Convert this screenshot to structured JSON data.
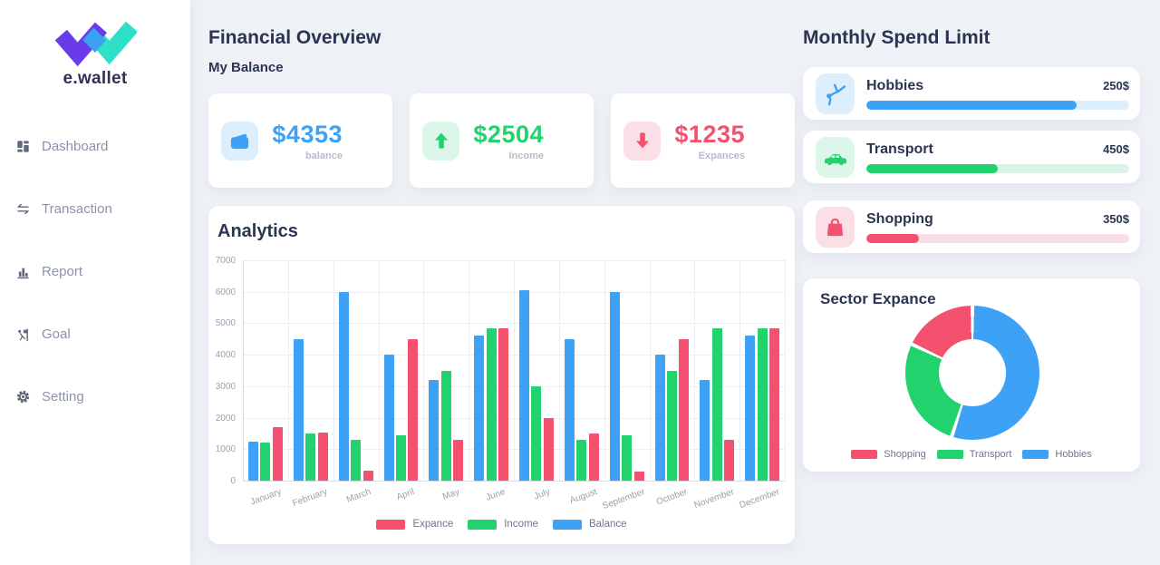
{
  "sidebar": {
    "logo_text": "e.wallet",
    "items": [
      {
        "label": "Dashboard"
      },
      {
        "label": "Transaction"
      },
      {
        "label": "Report"
      },
      {
        "label": "Goal"
      },
      {
        "label": "Setting"
      }
    ]
  },
  "header": {
    "title": "Financial Overview",
    "subtitle": "My Balance"
  },
  "summary_cards": [
    {
      "amount": "$4353",
      "label": "balance",
      "accent": "#3da2f5",
      "tile": "#ddeefd",
      "icon": "wallet-icon"
    },
    {
      "amount": "$2504",
      "label": "Income",
      "accent": "#22d36d",
      "tile": "#dcf6ea",
      "icon": "arrow-up-icon"
    },
    {
      "amount": "$1235",
      "label": "Expances",
      "accent": "#f4516e",
      "tile": "#fbdfe6",
      "icon": "arrow-down-icon"
    }
  ],
  "analytics": {
    "title": "Analytics"
  },
  "spend_limit": {
    "title": "Monthly Spend Limit",
    "items": [
      {
        "label": "Hobbies",
        "amount": "250$",
        "percent": 80,
        "color": "#3da2f5",
        "track": "#ddeefd",
        "tile": "#ddeefd",
        "icon": "cartwheel-icon"
      },
      {
        "label": "Transport",
        "amount": "450$",
        "percent": 50,
        "color": "#22d36d",
        "track": "#dcf4e8",
        "tile": "#dcf6ea",
        "icon": "car-icon"
      },
      {
        "label": "Shopping",
        "amount": "350$",
        "percent": 20,
        "color": "#f4516e",
        "track": "#f9dde4",
        "tile": "#fbdfe6",
        "icon": "shopping-bag-icon"
      }
    ]
  },
  "sector": {
    "title": "Sector Expance"
  },
  "chart_data": [
    {
      "type": "bar",
      "title": "Analytics",
      "categories": [
        "January",
        "February",
        "March",
        "April",
        "May",
        "June",
        "July",
        "August",
        "September",
        "October",
        "November",
        "December"
      ],
      "series": [
        {
          "name": "Balance",
          "color": "#3da2f5",
          "values": [
            1250,
            4500,
            6000,
            4000,
            3200,
            4600,
            6050,
            4500,
            6000,
            4000,
            3200,
            4600
          ]
        },
        {
          "name": "Income",
          "color": "#22d36d",
          "values": [
            1200,
            1500,
            1300,
            1450,
            3500,
            4850,
            3000,
            1300,
            1450,
            3500,
            4850,
            4850
          ]
        },
        {
          "name": "Expance",
          "color": "#f4516e",
          "values": [
            1700,
            1520,
            320,
            4500,
            1300,
            4850,
            2000,
            1500,
            300,
            4500,
            1300,
            4850
          ]
        }
      ],
      "legend_order": [
        "Expance",
        "Income",
        "Balance"
      ],
      "xlabel": "",
      "ylabel": "",
      "ylim": [
        0,
        7000
      ],
      "ytick_step": 1000,
      "grid": true,
      "legend_position": "bottom"
    },
    {
      "type": "pie",
      "title": "Sector Expance",
      "labels": [
        "Shopping",
        "Transport",
        "Hobbies"
      ],
      "values": [
        18,
        27,
        55
      ],
      "colors": [
        "#f4516e",
        "#22d36d",
        "#3da2f5"
      ],
      "donut": true,
      "start_from_top_clockwise": [
        "Hobbies",
        "Transport",
        "Shopping"
      ],
      "legend_position": "bottom"
    }
  ]
}
